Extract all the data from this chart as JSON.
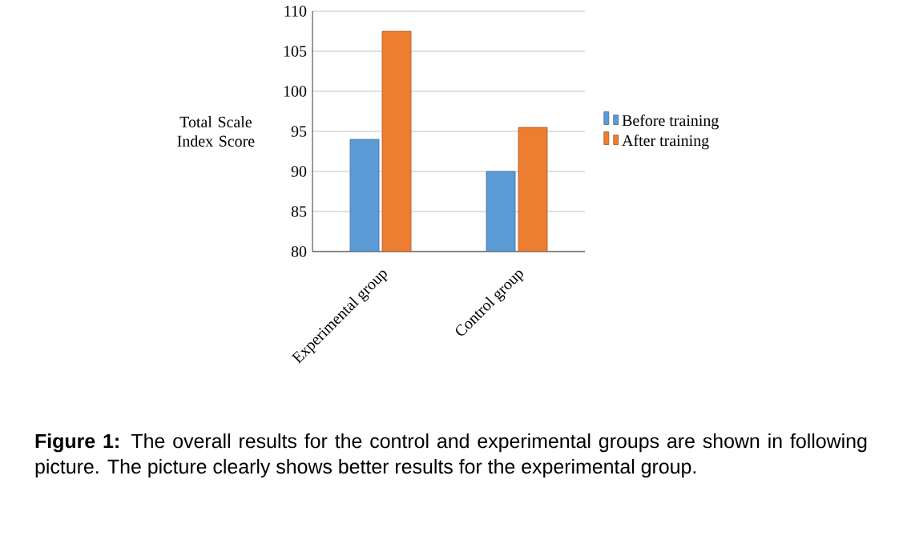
{
  "chart_data": {
    "type": "bar",
    "ylabel": "Total Scale Index Score",
    "categories": [
      "Experimental group",
      "Control group"
    ],
    "series": [
      {
        "name": "Before training",
        "color": "#5b9bd5",
        "values": [
          94,
          90
        ]
      },
      {
        "name": "After training",
        "color": "#ed7d31",
        "values": [
          107.5,
          95.5
        ]
      }
    ],
    "ylim": [
      80,
      110
    ],
    "yticks": [
      80,
      85,
      90,
      95,
      100,
      105,
      110
    ],
    "grid": "y",
    "legend": "right",
    "annotations": [
      "**Figure 1:** The overall results for the control and experimental groups are shown in following picture. The picture clearly shows better results for the experimental group."
    ]
  }
}
